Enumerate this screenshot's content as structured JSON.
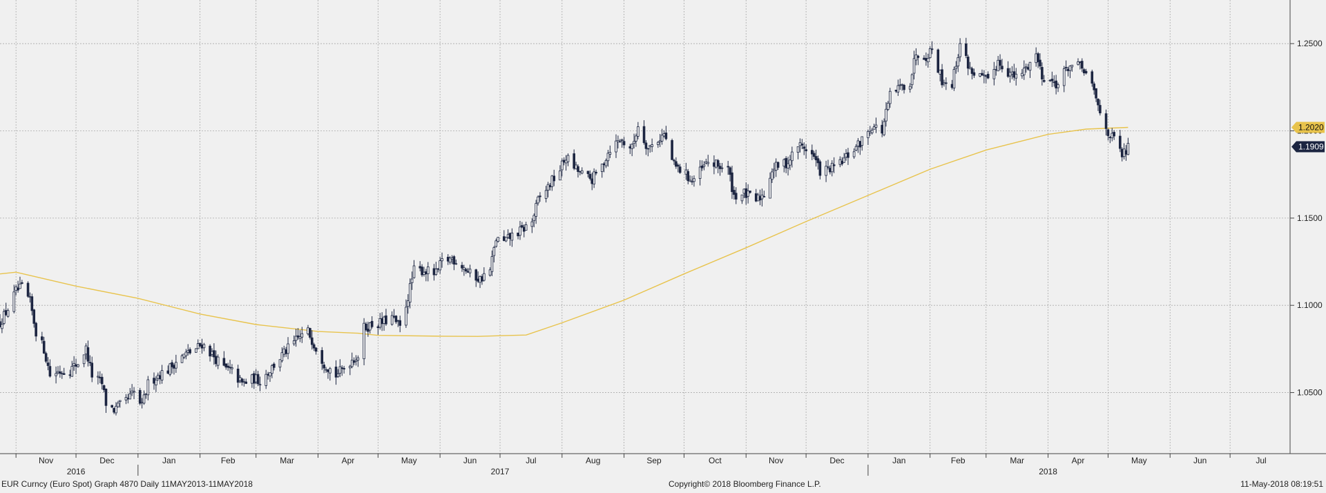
{
  "footer": {
    "left": "EUR Curncy (Euro Spot) Graph 4870  Daily 11MAY2013-11MAY2018",
    "center": "Copyright© 2018 Bloomberg Finance L.P.",
    "right": "11-May-2018 08:19:51"
  },
  "chart_data": {
    "type": "candlestick",
    "security": "EUR Curncy (Euro Spot)",
    "period": "Daily",
    "x_range": [
      "2016-10-24",
      "2018-07-31"
    ],
    "ylim": [
      1.015,
      1.275
    ],
    "y_ticks": [
      "1.0500",
      "1.1000",
      "1.1500",
      "1.2000",
      "1.2500"
    ],
    "y_tick_values": [
      1.05,
      1.1,
      1.15,
      1.2,
      1.25
    ],
    "grid": true,
    "month_labels": [
      {
        "label": "Nov",
        "date": "2016-11-01"
      },
      {
        "label": "Dec",
        "date": "2016-12-01"
      },
      {
        "label": "Jan",
        "date": "2017-01-01"
      },
      {
        "label": "Feb",
        "date": "2017-02-01"
      },
      {
        "label": "Mar",
        "date": "2017-03-01"
      },
      {
        "label": "Apr",
        "date": "2017-04-01"
      },
      {
        "label": "May",
        "date": "2017-05-01"
      },
      {
        "label": "Jun",
        "date": "2017-06-01"
      },
      {
        "label": "Jul",
        "date": "2017-07-01"
      },
      {
        "label": "Aug",
        "date": "2017-08-01"
      },
      {
        "label": "Sep",
        "date": "2017-09-01"
      },
      {
        "label": "Oct",
        "date": "2017-10-01"
      },
      {
        "label": "Nov",
        "date": "2017-11-01"
      },
      {
        "label": "Dec",
        "date": "2017-12-01"
      },
      {
        "label": "Jan",
        "date": "2018-01-01"
      },
      {
        "label": "Feb",
        "date": "2018-02-01"
      },
      {
        "label": "Mar",
        "date": "2018-03-01"
      },
      {
        "label": "Apr",
        "date": "2018-04-01"
      },
      {
        "label": "May",
        "date": "2018-05-01"
      },
      {
        "label": "Jun",
        "date": "2018-06-01"
      },
      {
        "label": "Jul",
        "date": "2018-07-01"
      }
    ],
    "year_labels": [
      {
        "label": "2016",
        "date": "2016-12-01"
      },
      {
        "label": "2017",
        "date": "2017-07-01"
      },
      {
        "label": "2018",
        "date": "2018-04-01"
      }
    ],
    "year_boundaries": [
      "2017-01-01",
      "2018-01-01"
    ],
    "price_series_color": "#1c2541",
    "moving_average_color": "#e8c34c",
    "last_labels": [
      {
        "value": "1.2020",
        "color": "#e8c34c",
        "text_color": "#111111"
      },
      {
        "value": "1.1909",
        "color": "#1c2541",
        "text_color": "#ffffff"
      }
    ],
    "price_points": [
      [
        "2016-10-24",
        1.09
      ],
      [
        "2016-10-28",
        1.098
      ],
      [
        "2016-11-01",
        1.108
      ],
      [
        "2016-11-04",
        1.11
      ],
      [
        "2016-11-08",
        1.102
      ],
      [
        "2016-11-11",
        1.085
      ],
      [
        "2016-11-15",
        1.075
      ],
      [
        "2016-11-18",
        1.06
      ],
      [
        "2016-11-22",
        1.062
      ],
      [
        "2016-11-28",
        1.063
      ],
      [
        "2016-12-02",
        1.067
      ],
      [
        "2016-12-06",
        1.075
      ],
      [
        "2016-12-09",
        1.06
      ],
      [
        "2016-12-14",
        1.055
      ],
      [
        "2016-12-16",
        1.044
      ],
      [
        "2016-12-20",
        1.04
      ],
      [
        "2016-12-26",
        1.045
      ],
      [
        "2016-12-30",
        1.05
      ],
      [
        "2017-01-03",
        1.042
      ],
      [
        "2017-01-06",
        1.055
      ],
      [
        "2017-01-11",
        1.06
      ],
      [
        "2017-01-16",
        1.063
      ],
      [
        "2017-01-20",
        1.068
      ],
      [
        "2017-01-25",
        1.072
      ],
      [
        "2017-01-30",
        1.075
      ],
      [
        "2017-02-02",
        1.078
      ],
      [
        "2017-02-07",
        1.072
      ],
      [
        "2017-02-13",
        1.064
      ],
      [
        "2017-02-17",
        1.062
      ],
      [
        "2017-02-22",
        1.055
      ],
      [
        "2017-02-28",
        1.058
      ],
      [
        "2017-03-03",
        1.057
      ],
      [
        "2017-03-08",
        1.063
      ],
      [
        "2017-03-13",
        1.07
      ],
      [
        "2017-03-17",
        1.075
      ],
      [
        "2017-03-22",
        1.081
      ],
      [
        "2017-03-27",
        1.085
      ],
      [
        "2017-03-30",
        1.078
      ],
      [
        "2017-04-04",
        1.067
      ],
      [
        "2017-04-10",
        1.06
      ],
      [
        "2017-04-13",
        1.063
      ],
      [
        "2017-04-18",
        1.069
      ],
      [
        "2017-04-21",
        1.071
      ],
      [
        "2017-04-24",
        1.087
      ],
      [
        "2017-04-28",
        1.089
      ],
      [
        "2017-05-03",
        1.09
      ],
      [
        "2017-05-08",
        1.093
      ],
      [
        "2017-05-12",
        1.087
      ],
      [
        "2017-05-16",
        1.105
      ],
      [
        "2017-05-19",
        1.12
      ],
      [
        "2017-05-24",
        1.12
      ],
      [
        "2017-05-30",
        1.118
      ],
      [
        "2017-06-02",
        1.125
      ],
      [
        "2017-06-07",
        1.127
      ],
      [
        "2017-06-12",
        1.123
      ],
      [
        "2017-06-16",
        1.118
      ],
      [
        "2017-06-21",
        1.115
      ],
      [
        "2017-06-26",
        1.12
      ],
      [
        "2017-06-29",
        1.138
      ],
      [
        "2017-07-03",
        1.136
      ],
      [
        "2017-07-07",
        1.14
      ],
      [
        "2017-07-12",
        1.143
      ],
      [
        "2017-07-17",
        1.148
      ],
      [
        "2017-07-20",
        1.16
      ],
      [
        "2017-07-25",
        1.168
      ],
      [
        "2017-07-31",
        1.178
      ],
      [
        "2017-08-03",
        1.185
      ],
      [
        "2017-08-08",
        1.178
      ],
      [
        "2017-08-11",
        1.175
      ],
      [
        "2017-08-16",
        1.172
      ],
      [
        "2017-08-21",
        1.18
      ],
      [
        "2017-08-25",
        1.19
      ],
      [
        "2017-08-30",
        1.195
      ],
      [
        "2017-09-05",
        1.19
      ],
      [
        "2017-09-08",
        1.203
      ],
      [
        "2017-09-13",
        1.19
      ],
      [
        "2017-09-18",
        1.195
      ],
      [
        "2017-09-21",
        1.198
      ],
      [
        "2017-09-26",
        1.18
      ],
      [
        "2017-10-02",
        1.175
      ],
      [
        "2017-10-05",
        1.171
      ],
      [
        "2017-10-10",
        1.178
      ],
      [
        "2017-10-13",
        1.182
      ],
      [
        "2017-10-18",
        1.18
      ],
      [
        "2017-10-23",
        1.178
      ],
      [
        "2017-10-26",
        1.163
      ],
      [
        "2017-10-31",
        1.164
      ],
      [
        "2017-11-06",
        1.16
      ],
      [
        "2017-11-10",
        1.164
      ],
      [
        "2017-11-14",
        1.178
      ],
      [
        "2017-11-17",
        1.18
      ],
      [
        "2017-11-22",
        1.182
      ],
      [
        "2017-11-27",
        1.192
      ],
      [
        "2017-12-01",
        1.19
      ],
      [
        "2017-12-05",
        1.185
      ],
      [
        "2017-12-08",
        1.177
      ],
      [
        "2017-12-13",
        1.178
      ],
      [
        "2017-12-18",
        1.181
      ],
      [
        "2017-12-22",
        1.186
      ],
      [
        "2017-12-28",
        1.193
      ],
      [
        "2018-01-03",
        1.203
      ],
      [
        "2018-01-08",
        1.2
      ],
      [
        "2018-01-12",
        1.22
      ],
      [
        "2018-01-17",
        1.225
      ],
      [
        "2018-01-22",
        1.228
      ],
      [
        "2018-01-25",
        1.245
      ],
      [
        "2018-01-30",
        1.243
      ],
      [
        "2018-02-02",
        1.247
      ],
      [
        "2018-02-07",
        1.229
      ],
      [
        "2018-02-12",
        1.227
      ],
      [
        "2018-02-16",
        1.25
      ],
      [
        "2018-02-21",
        1.235
      ],
      [
        "2018-02-26",
        1.231
      ],
      [
        "2018-03-02",
        1.228
      ],
      [
        "2018-03-07",
        1.24
      ],
      [
        "2018-03-12",
        1.234
      ],
      [
        "2018-03-16",
        1.23
      ],
      [
        "2018-03-21",
        1.236
      ],
      [
        "2018-03-26",
        1.244
      ],
      [
        "2018-03-29",
        1.232
      ],
      [
        "2018-04-03",
        1.228
      ],
      [
        "2018-04-06",
        1.227
      ],
      [
        "2018-04-11",
        1.237
      ],
      [
        "2018-04-16",
        1.237
      ],
      [
        "2018-04-19",
        1.235
      ],
      [
        "2018-04-24",
        1.222
      ],
      [
        "2018-04-27",
        1.21
      ],
      [
        "2018-05-02",
        1.197
      ],
      [
        "2018-05-04",
        1.195
      ],
      [
        "2018-05-08",
        1.186
      ],
      [
        "2018-05-10",
        1.188
      ],
      [
        "2018-05-11",
        1.191
      ]
    ],
    "moving_average_points": [
      [
        "2016-10-24",
        1.118
      ],
      [
        "2016-11-01",
        1.119
      ],
      [
        "2016-12-01",
        1.111
      ],
      [
        "2017-01-01",
        1.104
      ],
      [
        "2017-02-01",
        1.095
      ],
      [
        "2017-03-01",
        1.089
      ],
      [
        "2017-04-01",
        1.085
      ],
      [
        "2017-04-21",
        1.084
      ],
      [
        "2017-05-01",
        1.0828
      ],
      [
        "2017-06-01",
        1.0823
      ],
      [
        "2017-06-20",
        1.0822
      ],
      [
        "2017-07-01",
        1.0826
      ],
      [
        "2017-07-14",
        1.083
      ],
      [
        "2017-08-01",
        1.09
      ],
      [
        "2017-09-01",
        1.103
      ],
      [
        "2017-10-01",
        1.118
      ],
      [
        "2017-11-01",
        1.133
      ],
      [
        "2017-12-01",
        1.148
      ],
      [
        "2018-01-01",
        1.163
      ],
      [
        "2018-02-01",
        1.178
      ],
      [
        "2018-03-01",
        1.189
      ],
      [
        "2018-04-01",
        1.198
      ],
      [
        "2018-04-20",
        1.201
      ],
      [
        "2018-05-11",
        1.202
      ]
    ]
  }
}
